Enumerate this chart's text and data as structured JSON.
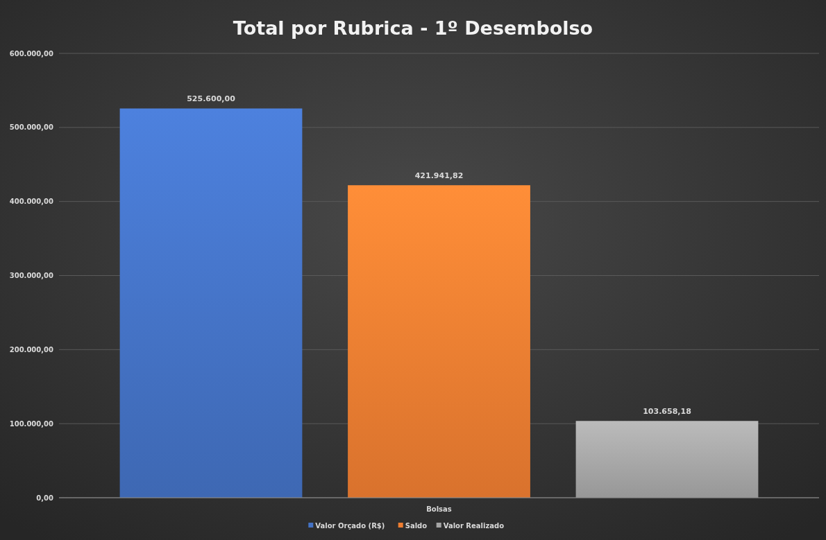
{
  "chart_data": {
    "type": "bar",
    "title": "Total por Rubrica - 1º Desembolso",
    "categories": [
      "Bolsas"
    ],
    "series": [
      {
        "name": "Valor Orçado (R$)",
        "color": "#4472c4",
        "values": [
          525600
        ],
        "value_labels": [
          "525.600,00"
        ]
      },
      {
        "name": "Saldo",
        "color": "#ed7d31",
        "values": [
          421941.82
        ],
        "value_labels": [
          "421.941,82"
        ]
      },
      {
        "name": "Valor Realizado",
        "color": "#a5a5a5",
        "values": [
          103658.18
        ],
        "value_labels": [
          "103.658,18"
        ]
      }
    ],
    "ylim": [
      0,
      600000
    ],
    "yticks": [
      {
        "value": 0,
        "label": "0,00"
      },
      {
        "value": 100000,
        "label": "100.000,00"
      },
      {
        "value": 200000,
        "label": "200.000,00"
      },
      {
        "value": 300000,
        "label": "300.000,00"
      },
      {
        "value": 400000,
        "label": "400.000,00"
      },
      {
        "value": 500000,
        "label": "500.000,00"
      },
      {
        "value": 600000,
        "label": "600.000,00"
      }
    ],
    "grid": "y",
    "legend": "bottom"
  }
}
